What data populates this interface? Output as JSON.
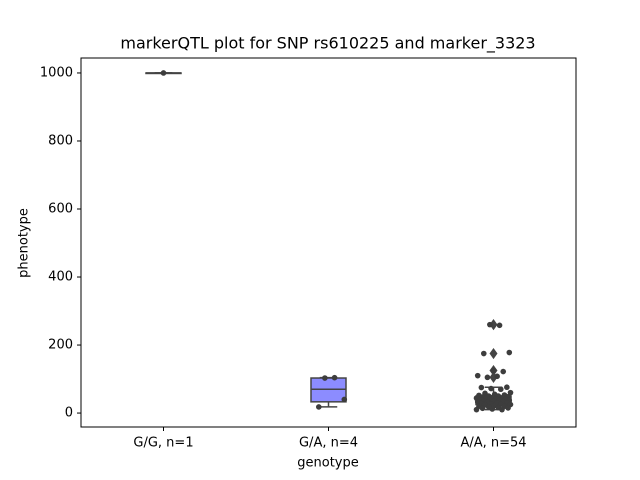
{
  "chart_data": {
    "type": "box",
    "title": "markerQTL plot for SNP rs610225 and marker_3323",
    "xlabel": "genotype",
    "ylabel": "phenotype",
    "categories": [
      "G/G, n=1",
      "G/A, n=4",
      "A/A, n=54"
    ],
    "ylim": [
      -41,
      1044
    ],
    "yticks": [
      0,
      200,
      400,
      600,
      800,
      1000
    ],
    "box_colors": [
      "#8c8cff",
      "#8c8cff",
      "#9a7fe0"
    ],
    "point_color": "#3d3d3d",
    "boxes": [
      {
        "q1": 1000,
        "median": 1000,
        "q3": 1000,
        "whisker_low": 1000,
        "whisker_high": 1000,
        "outliers": [],
        "points": [
          1000
        ]
      },
      {
        "q1": 33,
        "median": 70,
        "q3": 103,
        "whisker_low": 18,
        "whisker_high": 104,
        "outliers": [],
        "points": [
          103,
          104,
          40,
          18
        ]
      },
      {
        "q1": 25,
        "median": 38,
        "q3": 50,
        "whisker_low": 10,
        "whisker_high": 76,
        "outliers": [
          260,
          175,
          125,
          105
        ],
        "points": [
          260,
          258,
          178,
          175,
          125,
          122,
          110,
          105,
          108,
          76,
          75,
          72,
          70,
          60,
          58,
          55,
          53,
          52,
          50,
          50,
          48,
          47,
          46,
          45,
          44,
          43,
          42,
          41,
          40,
          40,
          38,
          37,
          36,
          35,
          34,
          33,
          32,
          30,
          30,
          28,
          27,
          26,
          25,
          24,
          22,
          20,
          20,
          18,
          16,
          15,
          14,
          12,
          10,
          10
        ]
      }
    ]
  }
}
